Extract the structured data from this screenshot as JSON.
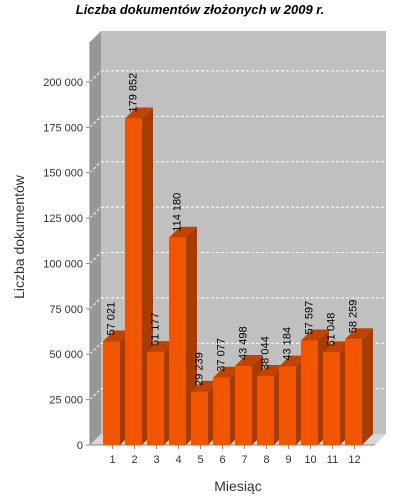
{
  "chart_data": {
    "type": "bar",
    "title": "Liczba dokumentów złożonych w 2009 r.",
    "xlabel": "Miesiąc",
    "ylabel": "Liczba dokumentów",
    "categories": [
      "1",
      "2",
      "3",
      "4",
      "5",
      "6",
      "7",
      "8",
      "9",
      "10",
      "11",
      "12"
    ],
    "values": [
      57021,
      179852,
      51177,
      114180,
      29239,
      37077,
      43498,
      38044,
      43184,
      57597,
      51048,
      58259
    ],
    "value_labels": [
      "57 021",
      "179 852",
      "51 177",
      "114 180",
      "29 239",
      "37 077",
      "43 498",
      "38 044",
      "43 184",
      "57 597",
      "51 048",
      "58 259"
    ],
    "yticks": [
      0,
      25000,
      50000,
      75000,
      100000,
      125000,
      150000,
      175000,
      200000
    ],
    "ytick_labels": [
      "0",
      "25 000",
      "50 000",
      "75 000",
      "100 000",
      "125 000",
      "150 000",
      "175 000",
      "200 000"
    ],
    "ylim": [
      0,
      222000
    ],
    "grid": true,
    "legend": "none",
    "colors": {
      "bar_front": "#f25500",
      "bar_top": "#c04400",
      "bar_side": "#a83b00",
      "plot_back": "#c0c0c0",
      "plot_wall": "#989898",
      "plot_floor": "#d8d8d8",
      "grid": "#ffffff"
    }
  }
}
